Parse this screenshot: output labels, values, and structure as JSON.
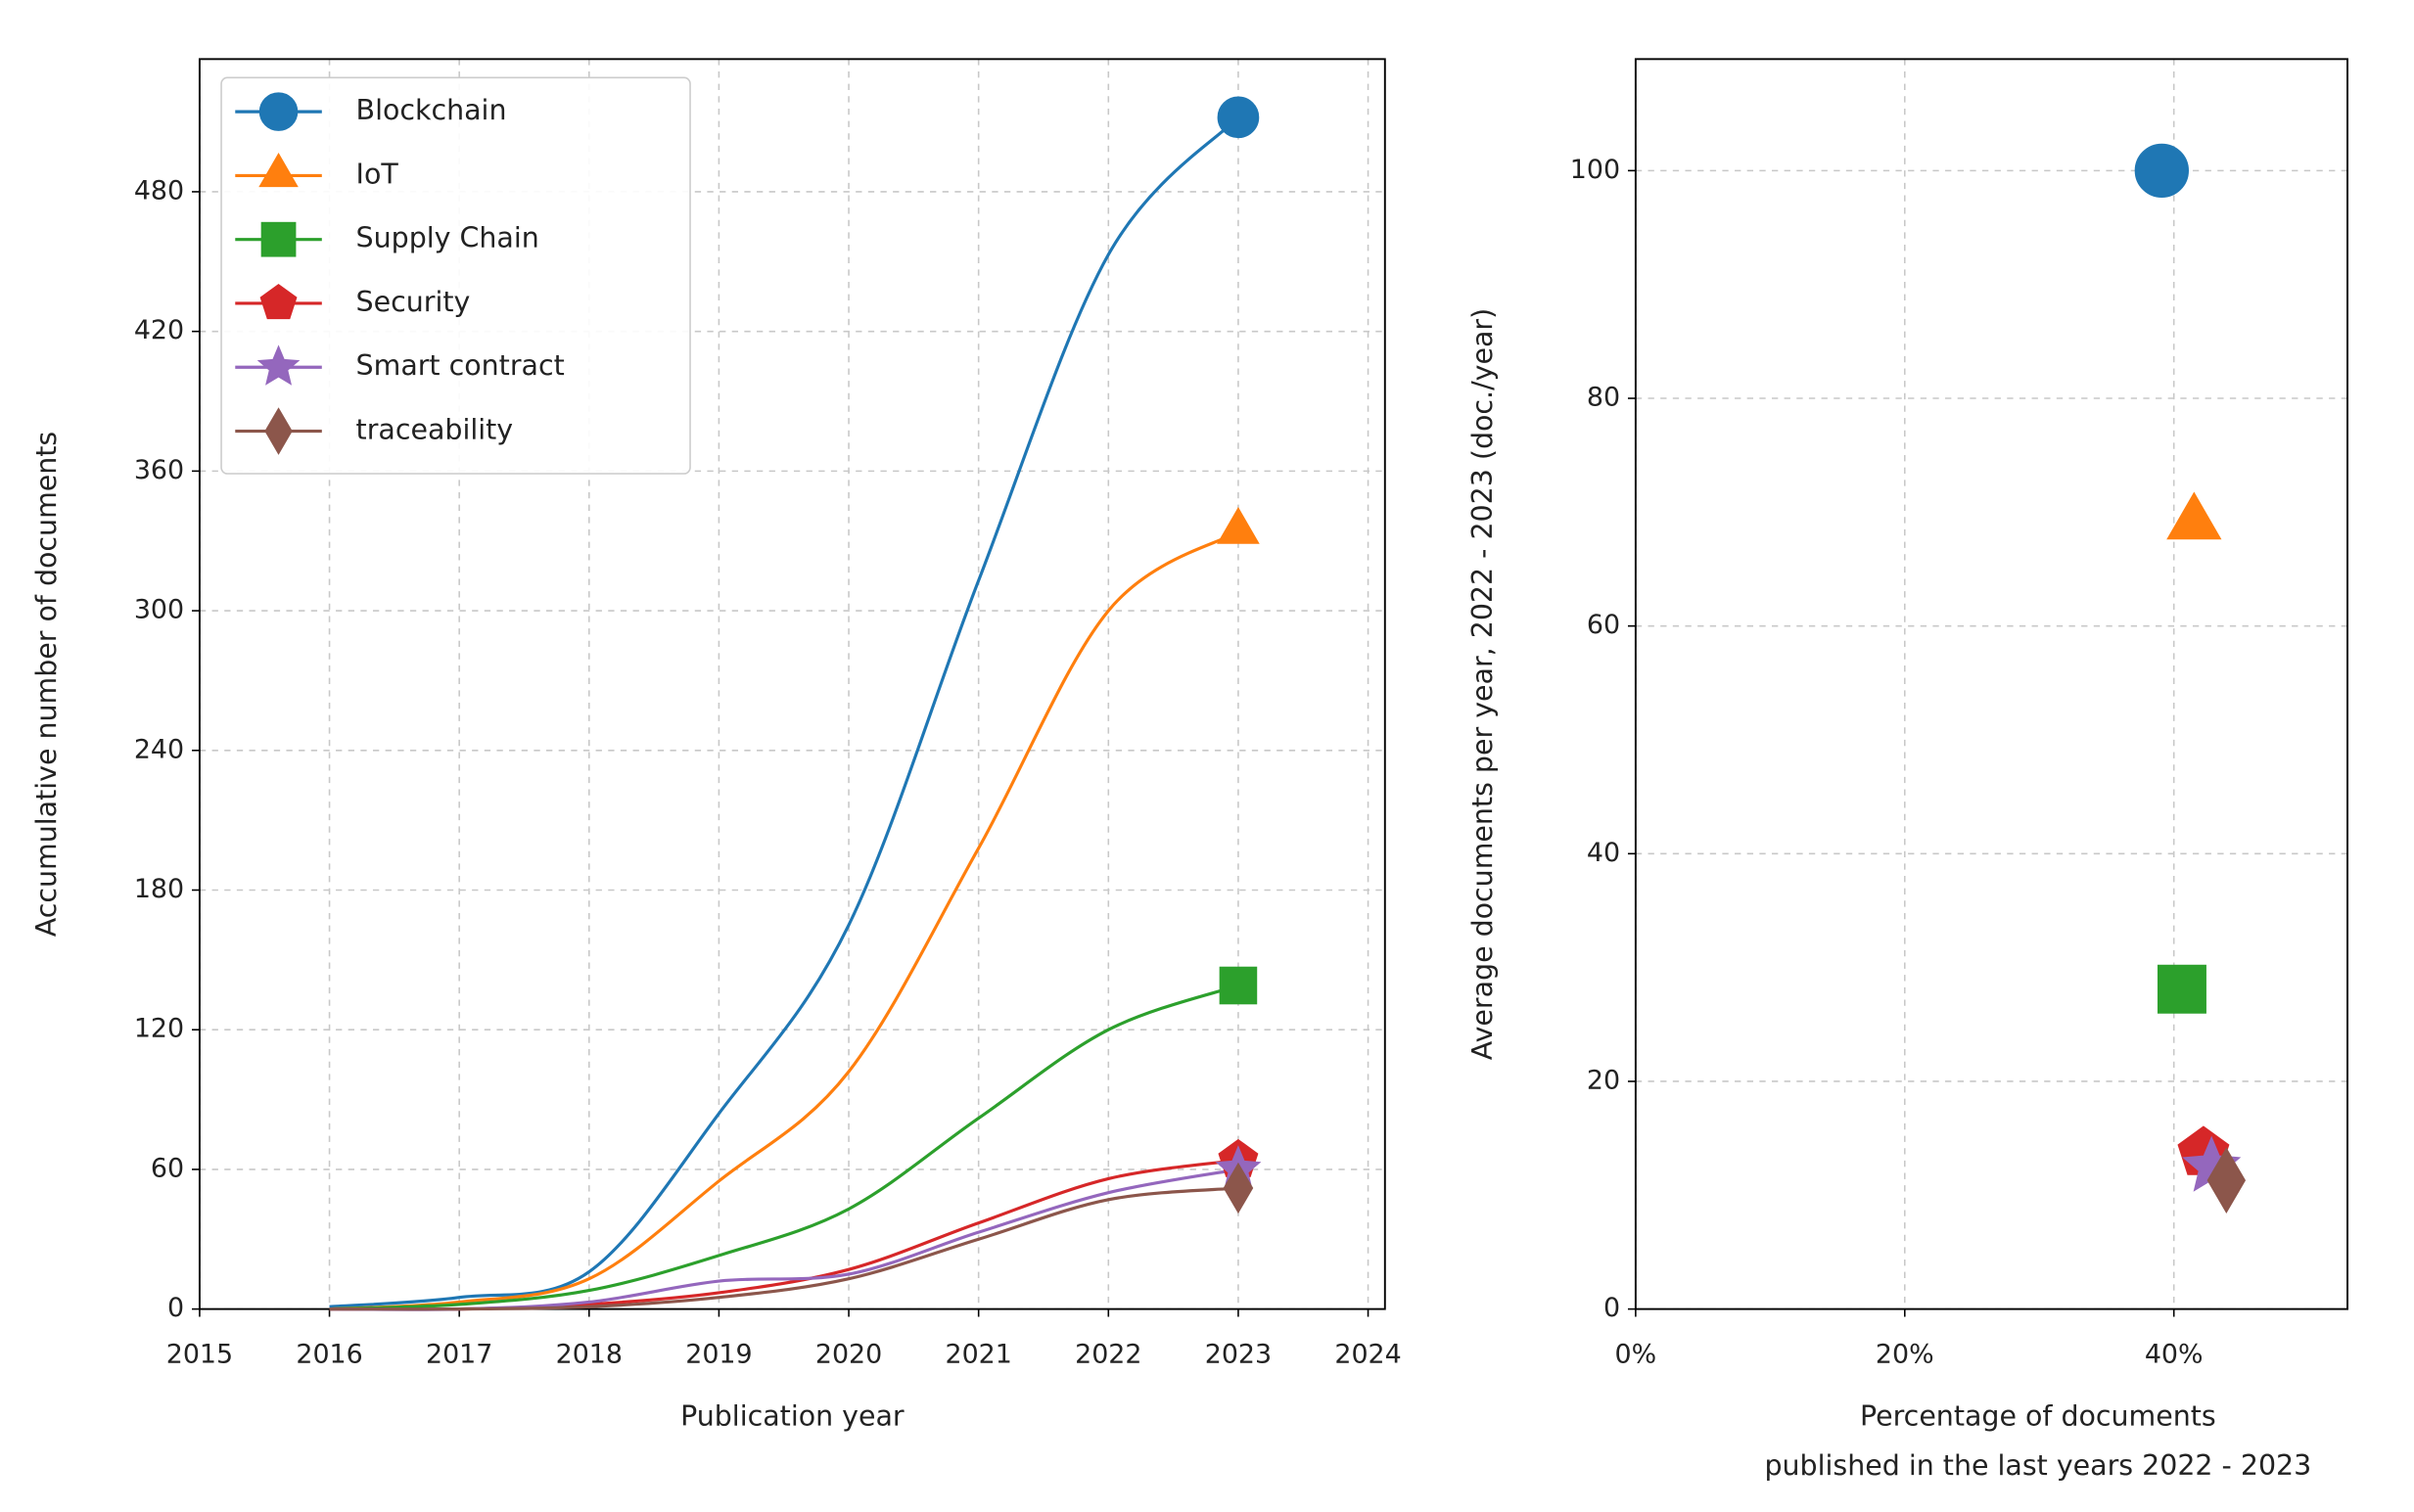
{
  "chart_data": [
    {
      "type": "line",
      "xlabel": "Publication year",
      "ylabel": "Accumulative number of documents",
      "x": [
        2016,
        2017,
        2018,
        2019,
        2020,
        2021,
        2022,
        2023
      ],
      "series": [
        {
          "name": "Blockchain",
          "color": "#1f77b4",
          "marker": "circle",
          "values": [
            1,
            5,
            16,
            84,
            165,
            313,
            453,
            512
          ]
        },
        {
          "name": "IoT",
          "color": "#ff7f0e",
          "marker": "triangle",
          "values": [
            0,
            3,
            13,
            55,
            102,
            198,
            300,
            334
          ]
        },
        {
          "name": "Supply Chain",
          "color": "#2ca02c",
          "marker": "square",
          "values": [
            0,
            2,
            8,
            23,
            43,
            82,
            120,
            139
          ]
        },
        {
          "name": "Security",
          "color": "#d62728",
          "marker": "pentagon",
          "values": [
            0,
            0,
            2,
            7,
            17,
            37,
            56,
            64
          ]
        },
        {
          "name": "Smart contract",
          "color": "#9467bd",
          "marker": "star",
          "values": [
            0,
            0,
            3,
            12,
            15,
            33,
            50,
            60
          ]
        },
        {
          "name": "traceability",
          "color": "#8c564b",
          "marker": "diamond",
          "values": [
            0,
            0,
            1,
            5,
            13,
            30,
            47,
            52
          ]
        }
      ],
      "xlim": [
        2015,
        2024.13
      ],
      "ylim": [
        0,
        537
      ],
      "xticks": [
        2015,
        2016,
        2017,
        2018,
        2019,
        2020,
        2021,
        2022,
        2023,
        2024
      ],
      "yticks": [
        0,
        60,
        120,
        180,
        240,
        300,
        360,
        420,
        480
      ],
      "grid": true,
      "legend": "upper left"
    },
    {
      "type": "scatter",
      "xlabel": [
        "Percentage of documents",
        "published in the last years 2022 - 2023"
      ],
      "ylabel": "Average documents per year, 2022 - 2023 (doc./year)",
      "series": [
        {
          "color": "#1f77b4",
          "marker": "circle",
          "x": [
            39.1
          ],
          "values": [
            100
          ]
        },
        {
          "color": "#ff7f0e",
          "marker": "triangle",
          "x": [
            41.5
          ],
          "values": [
            69
          ]
        },
        {
          "color": "#2ca02c",
          "marker": "square",
          "x": [
            40.6
          ],
          "values": [
            28.1
          ]
        },
        {
          "color": "#d62728",
          "marker": "pentagon",
          "x": [
            42.2
          ],
          "values": [
            13.7
          ]
        },
        {
          "color": "#9467bd",
          "marker": "star",
          "x": [
            42.8
          ],
          "values": [
            12.5
          ]
        },
        {
          "color": "#8c564b",
          "marker": "diamond",
          "x": [
            43.9
          ],
          "values": [
            11.3
          ]
        }
      ],
      "xlim": [
        0,
        52.9
      ],
      "ylim": [
        0,
        109.8
      ],
      "xticks": [
        {
          "value": 0,
          "label": "0%"
        },
        {
          "value": 20,
          "label": "20%"
        },
        {
          "value": 40,
          "label": "40%"
        }
      ],
      "yticks": [
        0,
        20,
        40,
        60,
        80,
        100
      ],
      "grid": true
    }
  ]
}
